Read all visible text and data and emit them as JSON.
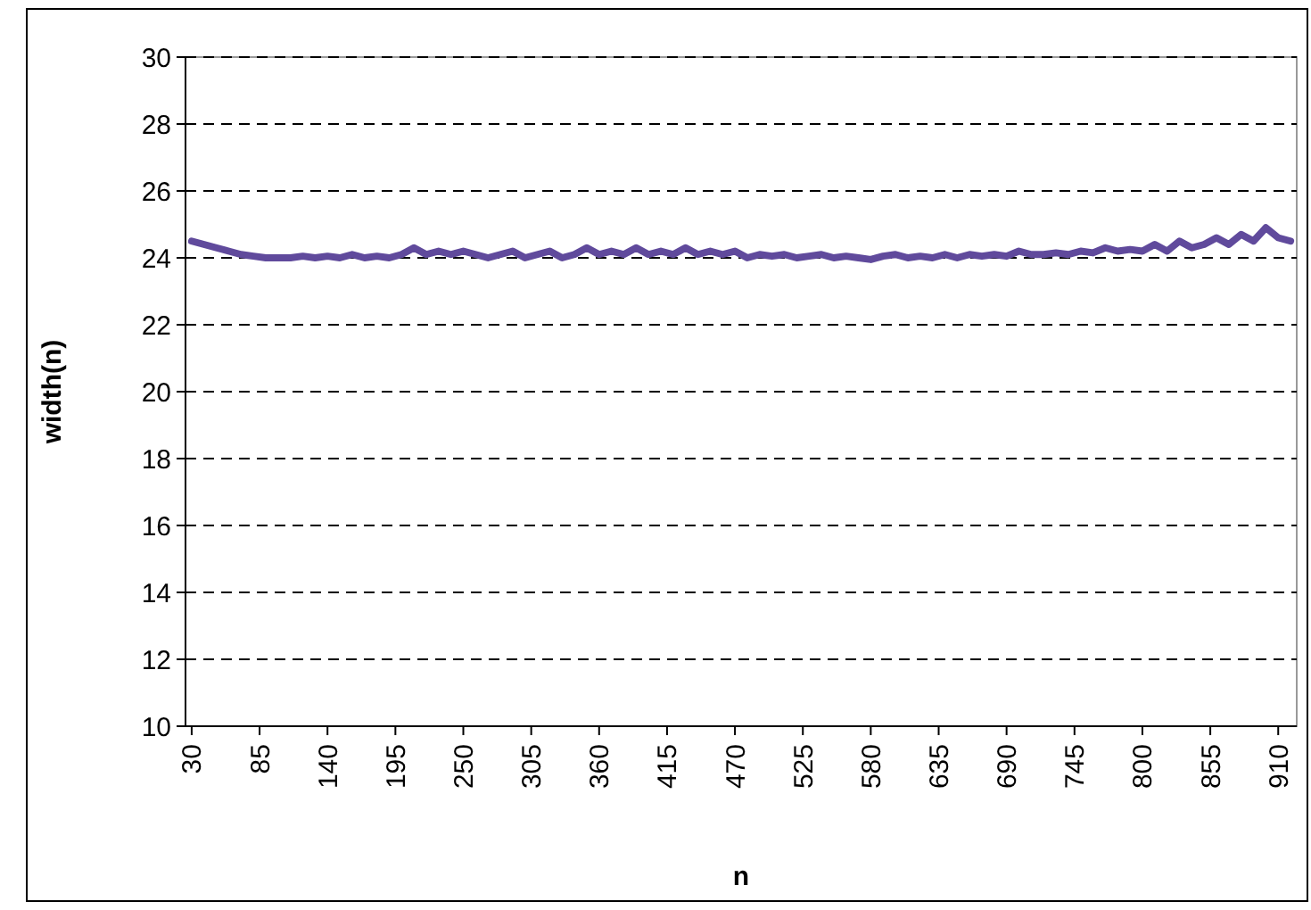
{
  "chart_data": {
    "type": "line",
    "xlabel": "n",
    "ylabel": "width(n)",
    "x": [
      30,
      40,
      50,
      60,
      70,
      80,
      90,
      100,
      110,
      120,
      130,
      140,
      150,
      160,
      170,
      180,
      190,
      200,
      210,
      220,
      230,
      240,
      250,
      260,
      270,
      280,
      290,
      300,
      310,
      320,
      330,
      340,
      350,
      360,
      370,
      380,
      390,
      400,
      410,
      420,
      430,
      440,
      450,
      460,
      470,
      480,
      490,
      500,
      510,
      520,
      530,
      540,
      550,
      560,
      570,
      580,
      590,
      600,
      610,
      620,
      630,
      640,
      650,
      660,
      670,
      680,
      690,
      700,
      710,
      720,
      730,
      740,
      750,
      760,
      770,
      780,
      790,
      800,
      810,
      820,
      830,
      840,
      850,
      860,
      870,
      880,
      890,
      900,
      910,
      920
    ],
    "series": [
      {
        "color": "#604a9c",
        "values": [
          24.5,
          24.4,
          24.3,
          24.2,
          24.1,
          24.05,
          24.0,
          24.0,
          24.0,
          24.05,
          24.0,
          24.05,
          24.0,
          24.1,
          24.0,
          24.05,
          24.0,
          24.1,
          24.3,
          24.1,
          24.2,
          24.1,
          24.2,
          24.1,
          24.0,
          24.1,
          24.2,
          24.0,
          24.1,
          24.2,
          24.0,
          24.1,
          24.3,
          24.1,
          24.2,
          24.1,
          24.3,
          24.1,
          24.2,
          24.1,
          24.3,
          24.1,
          24.2,
          24.1,
          24.2,
          24.0,
          24.1,
          24.05,
          24.1,
          24.0,
          24.05,
          24.1,
          24.0,
          24.05,
          24.0,
          23.95,
          24.05,
          24.1,
          24.0,
          24.05,
          24.0,
          24.1,
          24.0,
          24.1,
          24.05,
          24.1,
          24.05,
          24.2,
          24.1,
          24.1,
          24.15,
          24.1,
          24.2,
          24.15,
          24.3,
          24.2,
          24.25,
          24.2,
          24.4,
          24.2,
          24.5,
          24.3,
          24.4,
          24.6,
          24.4,
          24.7,
          24.5,
          24.9,
          24.6,
          24.5
        ]
      }
    ],
    "xlim": [
      25,
      925
    ],
    "xticks": [
      30,
      85,
      140,
      195,
      250,
      305,
      360,
      415,
      470,
      525,
      580,
      635,
      690,
      745,
      800,
      855,
      910
    ],
    "ylim": [
      10,
      30
    ],
    "yticks": [
      10,
      12,
      14,
      16,
      18,
      20,
      22,
      24,
      26,
      28,
      30
    ],
    "grid": "y",
    "line_style": "solid"
  }
}
